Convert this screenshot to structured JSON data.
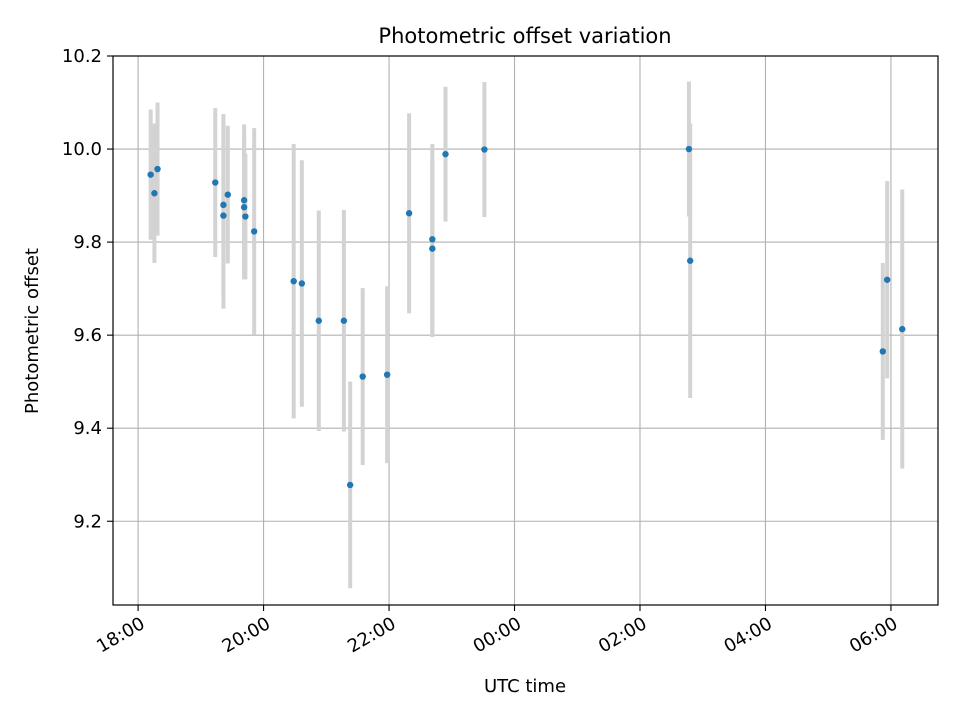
{
  "chart_data": {
    "type": "scatter",
    "title": "Photometric offset variation",
    "xlabel": "UTC time",
    "ylabel": "Photometric offset",
    "x_unit": "hours since 18:00 UTC",
    "xlim": [
      -0.4,
      12.75
    ],
    "ylim": [
      9.02,
      10.2
    ],
    "x_ticks": [
      {
        "value": 0,
        "label": "18:00"
      },
      {
        "value": 2,
        "label": "20:00"
      },
      {
        "value": 4,
        "label": "22:00"
      },
      {
        "value": 6,
        "label": "00:00"
      },
      {
        "value": 8,
        "label": "02:00"
      },
      {
        "value": 10,
        "label": "04:00"
      },
      {
        "value": 12,
        "label": "06:00"
      }
    ],
    "y_ticks": [
      {
        "value": 9.2,
        "label": "9.2"
      },
      {
        "value": 9.4,
        "label": "9.4"
      },
      {
        "value": 9.6,
        "label": "9.6"
      },
      {
        "value": 9.8,
        "label": "9.8"
      },
      {
        "value": 10.0,
        "label": "10.0"
      },
      {
        "value": 10.2,
        "label": "10.2"
      }
    ],
    "grid": true,
    "point_color": "#1f77b4",
    "errorbar_color": "#d3d3d3",
    "points": [
      {
        "x": 0.2,
        "y": 9.945,
        "err": 0.14
      },
      {
        "x": 0.26,
        "y": 9.905,
        "err": 0.15
      },
      {
        "x": 0.31,
        "y": 9.957,
        "err": 0.143
      },
      {
        "x": 1.23,
        "y": 9.928,
        "err": 0.16
      },
      {
        "x": 1.36,
        "y": 9.857,
        "err": 0.2
      },
      {
        "x": 1.36,
        "y": 9.88,
        "err": 0.195
      },
      {
        "x": 1.43,
        "y": 9.902,
        "err": 0.148
      },
      {
        "x": 1.69,
        "y": 9.89,
        "err": 0.163
      },
      {
        "x": 1.69,
        "y": 9.875,
        "err": 0.155
      },
      {
        "x": 1.71,
        "y": 9.855,
        "err": 0.135
      },
      {
        "x": 1.85,
        "y": 9.823,
        "err": 0.222
      },
      {
        "x": 2.48,
        "y": 9.716,
        "err": 0.295
      },
      {
        "x": 2.61,
        "y": 9.711,
        "err": 0.265
      },
      {
        "x": 2.88,
        "y": 9.631,
        "err": 0.237
      },
      {
        "x": 3.28,
        "y": 9.631,
        "err": 0.238
      },
      {
        "x": 3.38,
        "y": 9.278,
        "err": 0.222
      },
      {
        "x": 3.58,
        "y": 9.511,
        "err": 0.19
      },
      {
        "x": 3.97,
        "y": 9.515,
        "err": 0.19
      },
      {
        "x": 4.32,
        "y": 9.862,
        "err": 0.215
      },
      {
        "x": 4.69,
        "y": 9.806,
        "err": 0.205
      },
      {
        "x": 4.69,
        "y": 9.786,
        "err": 0.19
      },
      {
        "x": 4.9,
        "y": 9.989,
        "err": 0.145
      },
      {
        "x": 5.52,
        "y": 9.999,
        "err": 0.145
      },
      {
        "x": 8.78,
        "y": 10.0,
        "err": 0.145
      },
      {
        "x": 8.8,
        "y": 9.76,
        "err": 0.295
      },
      {
        "x": 11.87,
        "y": 9.565,
        "err": 0.19
      },
      {
        "x": 11.94,
        "y": 9.719,
        "err": 0.212
      },
      {
        "x": 12.18,
        "y": 9.613,
        "err": 0.3
      }
    ]
  }
}
